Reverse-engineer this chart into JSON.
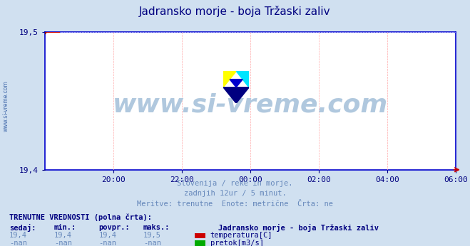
{
  "title": "Jadransko morje - boja Tržaski zaliv",
  "title_color": "#000080",
  "bg_color": "#d0e0f0",
  "plot_bg_color": "#ffffff",
  "grid_color_h": "#aaaaff",
  "grid_color_v": "#ffaaaa",
  "axis_color": "#0000cc",
  "tick_label_color": "#000080",
  "ylim": [
    19.4,
    19.5
  ],
  "yticks": [
    19.4,
    19.5
  ],
  "xtick_labels": [
    "20:00",
    "22:00",
    "00:00",
    "02:00",
    "04:00",
    "06:00"
  ],
  "xtick_positions": [
    0.16667,
    0.33333,
    0.5,
    0.66667,
    0.83333,
    1.0
  ],
  "watermark_text": "www.si-vreme.com",
  "watermark_color": "#b0c8de",
  "sidebar_text": "www.si-vreme.com",
  "sidebar_color": "#4169aa",
  "subtitle_lines": [
    "Slovenija / reke in morje.",
    "zadnjih 12ur / 5 minut.",
    "Meritve: trenutne  Enote: metrične  Črta: ne"
  ],
  "subtitle_color": "#6688bb",
  "table_header": "TRENUTNE VREDNOSTI (polna črta):",
  "table_header_color": "#000080",
  "col_headers": [
    "sedaj:",
    "min.:",
    "povpr.:",
    "maks.:"
  ],
  "col_header_color": "#000080",
  "row1_values": [
    "19,4",
    "19,4",
    "19,4",
    "19,5"
  ],
  "row2_values": [
    "-nan",
    "-nan",
    "-nan",
    "-nan"
  ],
  "value_color": "#6688bb",
  "series_label": "Jadransko morje - boja Tržaski zaliv",
  "series_label_color": "#000080",
  "legend_items": [
    {
      "label": "temperatura[C]",
      "color": "#cc0000"
    },
    {
      "label": "pretok[m3/s]",
      "color": "#00aa00"
    }
  ],
  "temp_line_color": "#cc0000",
  "temp_marker_color": "#8b0000",
  "arrow_color": "#cc0000"
}
